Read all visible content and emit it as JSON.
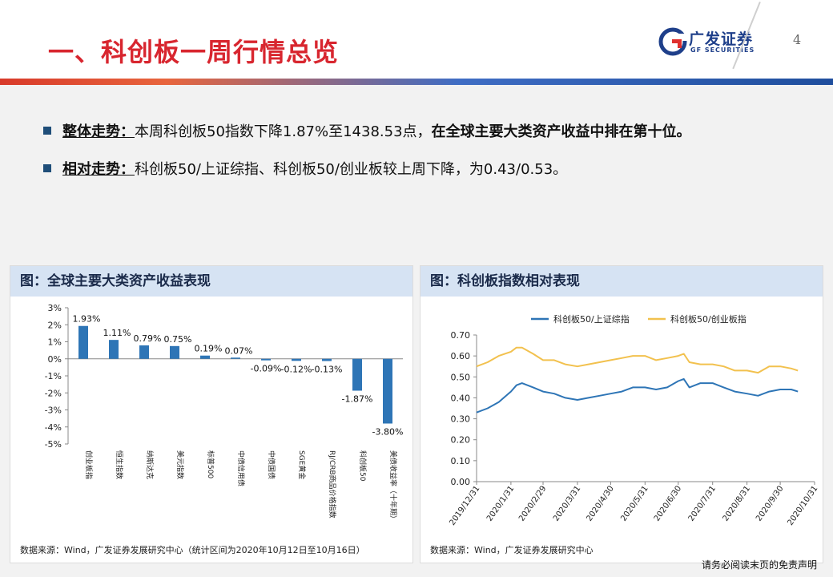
{
  "header": {
    "title": "一、科创板一周行情总览",
    "logo_cn": "广发证券",
    "logo_en": "GF SECURITIES",
    "page_number": "4"
  },
  "bullets": [
    {
      "label": "整体走势：",
      "text": "本周科创板50指数下降1.87%至1438.53点，",
      "bold_text": "在全球主要大类资产收益中排在第十位。"
    },
    {
      "label": "相对走势：",
      "text": "科创板50/上证综指、科创板50/创业板较上周下降，为0.43/0.53。",
      "bold_text": ""
    }
  ],
  "left_panel": {
    "title": "图：全球主要大类资产收益表现",
    "source": "数据来源：Wind，广发证券发展研究中心（统计区间为2020年10月12日至10月16日）"
  },
  "right_panel": {
    "title": "图：科创板指数相对表现",
    "source": "数据来源：Wind，广发证券发展研究中心"
  },
  "disclaimer": "请务必阅读末页的免责声明",
  "chart_data": [
    {
      "type": "bar",
      "title": "图：全球主要大类资产收益表现",
      "categories": [
        "创业板指",
        "恒生指数",
        "纳斯达克",
        "美元指数",
        "标普500",
        "中债信用债",
        "中债国债",
        "SGE黄金",
        "RJ/CRB商品价格指数",
        "科创板50",
        "美债收益率（十年期）"
      ],
      "values": [
        1.93,
        1.11,
        0.79,
        0.75,
        0.19,
        0.07,
        -0.09,
        -0.12,
        -0.13,
        -1.87,
        -3.8
      ],
      "labels": [
        "1.93%",
        "1.11%",
        "0.79%",
        "0.75%",
        "0.19%",
        "0.07%",
        "-0.09%",
        "-0.12%",
        "-0.13%",
        "-1.87%",
        "-3.80%"
      ],
      "yticks": [
        "3%",
        "2%",
        "1%",
        "0%",
        "-1%",
        "-2%",
        "-3%",
        "-4%",
        "-5%"
      ],
      "ylim": [
        -5,
        3
      ],
      "color": "#2e75b6"
    },
    {
      "type": "line",
      "title": "图：科创板指数相对表现",
      "xticks": [
        "2019/12/31",
        "2020/1/31",
        "2020/2/29",
        "2020/3/31",
        "2020/4/30",
        "2020/5/31",
        "2020/6/30",
        "2020/7/31",
        "2020/8/31",
        "2020/9/30",
        "2020/10/31"
      ],
      "yticks": [
        "0.70",
        "0.60",
        "0.50",
        "0.40",
        "0.30",
        "0.20",
        "0.10",
        "0.00"
      ],
      "ylim": [
        0,
        0.7
      ],
      "legend_position": "top",
      "x": [
        "2019/12/31",
        "2020/1/10",
        "2020/1/20",
        "2020/1/31",
        "2020/2/5",
        "2020/2/10",
        "2020/2/20",
        "2020/2/29",
        "2020/3/10",
        "2020/3/20",
        "2020/3/31",
        "2020/4/10",
        "2020/4/20",
        "2020/4/30",
        "2020/5/10",
        "2020/5/20",
        "2020/5/31",
        "2020/6/10",
        "2020/6/20",
        "2020/6/30",
        "2020/7/5",
        "2020/7/10",
        "2020/7/20",
        "2020/7/31",
        "2020/8/10",
        "2020/8/20",
        "2020/8/31",
        "2020/9/10",
        "2020/9/20",
        "2020/9/30",
        "2020/10/10",
        "2020/10/16"
      ],
      "series": [
        {
          "name": "科创板50/上证综指",
          "color": "#2e75b6",
          "values": [
            0.33,
            0.35,
            0.38,
            0.43,
            0.46,
            0.47,
            0.45,
            0.43,
            0.42,
            0.4,
            0.39,
            0.4,
            0.41,
            0.42,
            0.43,
            0.45,
            0.45,
            0.44,
            0.45,
            0.48,
            0.49,
            0.45,
            0.47,
            0.47,
            0.45,
            0.43,
            0.42,
            0.41,
            0.43,
            0.44,
            0.44,
            0.43
          ]
        },
        {
          "name": "科创板50/创业板指",
          "color": "#f2c14e",
          "values": [
            0.55,
            0.57,
            0.6,
            0.62,
            0.64,
            0.64,
            0.61,
            0.58,
            0.58,
            0.56,
            0.55,
            0.56,
            0.57,
            0.58,
            0.59,
            0.6,
            0.6,
            0.58,
            0.59,
            0.6,
            0.61,
            0.57,
            0.56,
            0.56,
            0.55,
            0.53,
            0.53,
            0.52,
            0.55,
            0.55,
            0.54,
            0.53
          ]
        }
      ]
    }
  ]
}
